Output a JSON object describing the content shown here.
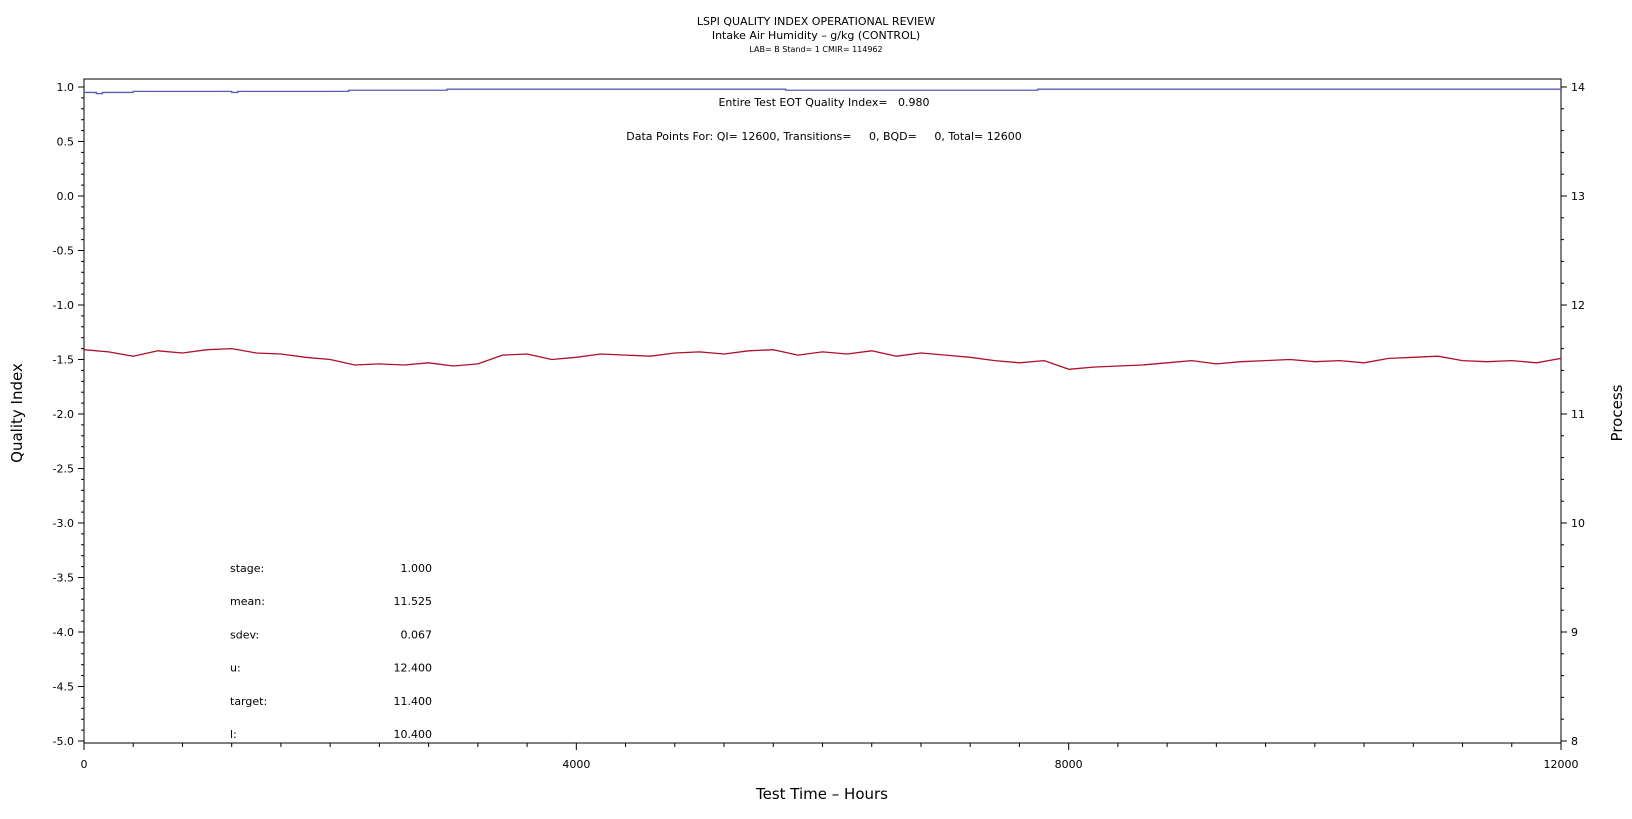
{
  "title": {
    "line1": "LSPI QUALITY INDEX OPERATIONAL REVIEW",
    "line2": "Intake Air Humidity – g/kg (CONTROL)",
    "line3": "LAB= B Stand= 1 CMIR= 114962"
  },
  "annotations": {
    "quality_index": "Entire Test EOT Quality Index=   0.980",
    "data_points": "Data Points For: QI= 12600, Transitions=     0, BQD=     0, Total= 12600"
  },
  "stats": [
    {
      "label": "stage:",
      "value": "1.000"
    },
    {
      "label": "mean:",
      "value": "11.525"
    },
    {
      "label": "sdev:",
      "value": "0.067"
    },
    {
      "label": "u:",
      "value": "12.400"
    },
    {
      "label": "target:",
      "value": "11.400"
    },
    {
      "label": "l:",
      "value": "10.400"
    }
  ],
  "colors": {
    "quality_index_line": "#5b5bb5",
    "process_line": "#b0102a",
    "axis": "#000000"
  },
  "chart_data": {
    "type": "line",
    "xlabel": "Test Time – Hours",
    "ylabel": "Quality Index",
    "y2label": "Process",
    "xlim": [
      0,
      12000
    ],
    "ylim": [
      -5.0,
      1.0
    ],
    "y2lim": [
      8,
      14
    ],
    "xticks": [
      "0",
      "4000",
      "8000",
      "12000"
    ],
    "yticks": [
      "1.0",
      "0.5",
      "0.0",
      "-0.5",
      "-1.0",
      "-1.5",
      "-2.0",
      "-2.5",
      "-3.0",
      "-3.5",
      "-4.0",
      "-4.5",
      "-5.0"
    ],
    "y2ticks": [
      "14",
      "13",
      "12",
      "11",
      "10",
      "9",
      "8"
    ],
    "series": [
      {
        "axis": "left",
        "step": true,
        "x": [
          0,
          100,
          150,
          400,
          1200,
          1250,
          2150,
          2950,
          5700,
          7750,
          12000
        ],
        "values": [
          0.95,
          0.94,
          0.95,
          0.96,
          0.95,
          0.96,
          0.97,
          0.98,
          0.97,
          0.98,
          0.98
        ]
      },
      {
        "axis": "right",
        "x": [
          0,
          200,
          400,
          600,
          800,
          1000,
          1200,
          1400,
          1600,
          1800,
          2000,
          2200,
          2400,
          2600,
          2800,
          3000,
          3200,
          3400,
          3600,
          3800,
          4000,
          4200,
          4400,
          4600,
          4800,
          5000,
          5200,
          5400,
          5600,
          5800,
          6000,
          6200,
          6400,
          6600,
          6800,
          7000,
          7200,
          7400,
          7600,
          7800,
          8000,
          8200,
          8400,
          8600,
          8800,
          9000,
          9200,
          9400,
          9600,
          9800,
          10000,
          10200,
          10400,
          10600,
          10800,
          11000,
          11200,
          11400,
          11600,
          11800,
          12000
        ],
        "values": [
          11.59,
          11.57,
          11.53,
          11.58,
          11.56,
          11.59,
          11.6,
          11.56,
          11.55,
          11.52,
          11.5,
          11.45,
          11.46,
          11.45,
          11.47,
          11.44,
          11.46,
          11.54,
          11.55,
          11.5,
          11.52,
          11.55,
          11.54,
          11.53,
          11.56,
          11.57,
          11.55,
          11.58,
          11.59,
          11.54,
          11.57,
          11.55,
          11.58,
          11.53,
          11.56,
          11.54,
          11.52,
          11.49,
          11.47,
          11.49,
          11.41,
          11.43,
          11.44,
          11.45,
          11.47,
          11.49,
          11.46,
          11.48,
          11.49,
          11.5,
          11.48,
          11.49,
          11.47,
          11.51,
          11.52,
          11.53,
          11.49,
          11.48,
          11.49,
          11.47,
          11.51
        ]
      }
    ]
  }
}
